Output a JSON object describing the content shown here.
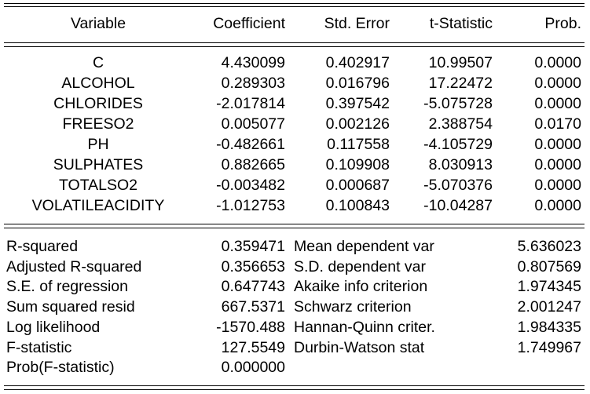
{
  "header": {
    "variable": "Variable",
    "coefficient": "Coefficient",
    "std_error": "Std. Error",
    "t_statistic": "t-Statistic",
    "prob": "Prob."
  },
  "rows": [
    {
      "variable": "C",
      "coefficient": "4.430099",
      "std_error": "0.402917",
      "t_statistic": "10.99507",
      "prob": "0.0000"
    },
    {
      "variable": "ALCOHOL",
      "coefficient": "0.289303",
      "std_error": "0.016796",
      "t_statistic": "17.22472",
      "prob": "0.0000"
    },
    {
      "variable": "CHLORIDES",
      "coefficient": "-2.017814",
      "std_error": "0.397542",
      "t_statistic": "-5.075728",
      "prob": "0.0000"
    },
    {
      "variable": "FREESO2",
      "coefficient": "0.005077",
      "std_error": "0.002126",
      "t_statistic": "2.388754",
      "prob": "0.0170"
    },
    {
      "variable": "PH",
      "coefficient": "-0.482661",
      "std_error": "0.117558",
      "t_statistic": "-4.105729",
      "prob": "0.0000"
    },
    {
      "variable": "SULPHATES",
      "coefficient": "0.882665",
      "std_error": "0.109908",
      "t_statistic": "8.030913",
      "prob": "0.0000"
    },
    {
      "variable": "TOTALSO2",
      "coefficient": "-0.003482",
      "std_error": "0.000687",
      "t_statistic": "-5.070376",
      "prob": "0.0000"
    },
    {
      "variable": "VOLATILEACIDITY",
      "coefficient": "-1.012753",
      "std_error": "0.100843",
      "t_statistic": "-10.04287",
      "prob": "0.0000"
    }
  ],
  "stats": [
    {
      "label": "R-squared",
      "value": "0.359471",
      "label2": "Mean dependent var",
      "value2": "5.636023"
    },
    {
      "label": "Adjusted R-squared",
      "value": "0.356653",
      "label2": "S.D. dependent var",
      "value2": "0.807569"
    },
    {
      "label": "S.E. of regression",
      "value": "0.647743",
      "label2": "Akaike info criterion",
      "value2": "1.974345"
    },
    {
      "label": "Sum squared resid",
      "value": "667.5371",
      "label2": "Schwarz criterion",
      "value2": "2.001247"
    },
    {
      "label": "Log likelihood",
      "value": "-1570.488",
      "label2": "Hannan-Quinn criter.",
      "value2": "1.984335"
    },
    {
      "label": "F-statistic",
      "value": "127.5549",
      "label2": "Durbin-Watson stat",
      "value2": "1.749967"
    },
    {
      "label": "Prob(F-statistic)",
      "value": "0.000000",
      "label2": "",
      "value2": ""
    }
  ]
}
